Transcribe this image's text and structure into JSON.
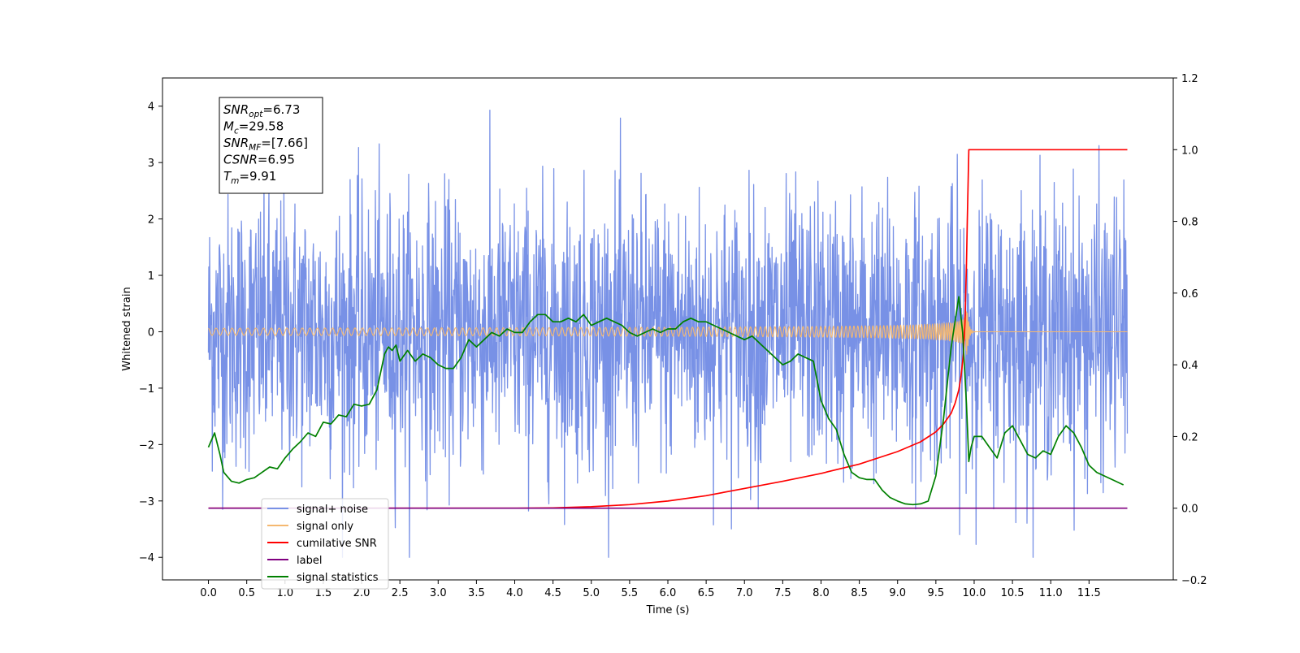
{
  "chart_data": {
    "type": "line",
    "xlabel": "Time (s)",
    "ylabel": "Whitened strain",
    "ylabel_right": "",
    "xlim": [
      -0.6,
      12.6
    ],
    "ylim": [
      -4.4,
      4.5
    ],
    "ylim_right": [
      -0.2,
      1.2
    ],
    "x_ticks": [
      "0.0",
      "0.5",
      "1.0",
      "1.5",
      "2.0",
      "2.5",
      "3.0",
      "3.5",
      "4.0",
      "4.5",
      "5.0",
      "5.5",
      "6.0",
      "6.5",
      "7.0",
      "7.5",
      "8.0",
      "8.5",
      "9.0",
      "9.5",
      "10.0",
      "10.5",
      "11.0",
      "11.5"
    ],
    "y_ticks": [
      "4",
      "3",
      "2",
      "1",
      "0",
      "−1",
      "−2",
      "−3",
      "−4"
    ],
    "y_ticks_right": [
      "1.2",
      "1.0",
      "0.8",
      "0.6",
      "0.4",
      "0.2",
      "0.0",
      "−0.2"
    ],
    "grid": false,
    "legend_position": "lower-left",
    "info_box": {
      "lines": [
        {
          "sym": "SNR",
          "sub": "opt",
          "val": "=6.73"
        },
        {
          "sym": "M",
          "sub": "c",
          "val": "=29.58"
        },
        {
          "sym": "SNR",
          "sub": "MF",
          "val": "=[7.66]"
        },
        {
          "sym": "CSNR",
          "sub": "",
          "val": "=6.95"
        },
        {
          "sym": "T",
          "sub": "m",
          "val": "=9.91"
        }
      ]
    },
    "series": [
      {
        "name": "signal+ noise",
        "color": "#7891e6",
        "axis": "left",
        "noise_band": {
          "x_start": 0.0,
          "x_end": 12.0,
          "typical_amplitude": 1.2,
          "peak_amplitude": 4.0
        }
      },
      {
        "name": "signal only",
        "color": "#f5b870",
        "axis": "left",
        "chirp": {
          "x_start": 0.0,
          "merger_time": 9.91,
          "x_end": 12.0,
          "peak_amplitude": 0.5
        }
      },
      {
        "name": "cumilative SNR",
        "color": "#ff0000",
        "axis": "right",
        "x": [
          0,
          4.0,
          4.5,
          5.0,
          5.5,
          6.0,
          6.5,
          7.0,
          7.5,
          8.0,
          8.5,
          9.0,
          9.3,
          9.5,
          9.6,
          9.7,
          9.75,
          9.8,
          9.83,
          9.86,
          9.88,
          9.9,
          9.91,
          9.93,
          12.0
        ],
        "values": [
          0,
          0,
          0.001,
          0.004,
          0.01,
          0.02,
          0.035,
          0.055,
          0.075,
          0.097,
          0.123,
          0.158,
          0.185,
          0.213,
          0.235,
          0.265,
          0.292,
          0.33,
          0.37,
          0.43,
          0.52,
          0.68,
          0.8,
          1.0,
          1.0
        ]
      },
      {
        "name": "label",
        "color": "#800080",
        "axis": "right",
        "x": [
          0,
          12.0
        ],
        "values": [
          0,
          0
        ]
      },
      {
        "name": "signal statistics",
        "color": "#008000",
        "axis": "right",
        "x": [
          0,
          0.08,
          0.15,
          0.2,
          0.3,
          0.4,
          0.5,
          0.6,
          0.7,
          0.8,
          0.9,
          1.0,
          1.1,
          1.2,
          1.3,
          1.4,
          1.5,
          1.6,
          1.7,
          1.8,
          1.9,
          2.0,
          2.1,
          2.2,
          2.3,
          2.35,
          2.4,
          2.45,
          2.5,
          2.6,
          2.7,
          2.8,
          2.9,
          3.0,
          3.1,
          3.2,
          3.3,
          3.4,
          3.5,
          3.6,
          3.7,
          3.8,
          3.9,
          4.0,
          4.1,
          4.2,
          4.3,
          4.4,
          4.5,
          4.6,
          4.7,
          4.8,
          4.9,
          5.0,
          5.1,
          5.2,
          5.3,
          5.4,
          5.5,
          5.6,
          5.7,
          5.8,
          5.9,
          6.0,
          6.1,
          6.2,
          6.3,
          6.4,
          6.5,
          6.6,
          6.7,
          6.8,
          6.9,
          7.0,
          7.1,
          7.2,
          7.3,
          7.4,
          7.5,
          7.6,
          7.7,
          7.8,
          7.9,
          8.0,
          8.1,
          8.2,
          8.3,
          8.4,
          8.5,
          8.6,
          8.7,
          8.8,
          8.9,
          9.0,
          9.1,
          9.2,
          9.3,
          9.4,
          9.5,
          9.6,
          9.7,
          9.8,
          9.85,
          9.9,
          9.93,
          9.96,
          10.0,
          10.1,
          10.2,
          10.3,
          10.4,
          10.5,
          10.6,
          10.7,
          10.8,
          10.9,
          11.0,
          11.1,
          11.2,
          11.3,
          11.4,
          11.5,
          11.6,
          11.7,
          11.8,
          11.95
        ],
        "values": [
          0.17,
          0.21,
          0.15,
          0.1,
          0.075,
          0.07,
          0.08,
          0.085,
          0.1,
          0.115,
          0.11,
          0.14,
          0.165,
          0.185,
          0.21,
          0.2,
          0.24,
          0.235,
          0.26,
          0.255,
          0.29,
          0.285,
          0.29,
          0.33,
          0.43,
          0.45,
          0.44,
          0.455,
          0.41,
          0.44,
          0.41,
          0.43,
          0.42,
          0.4,
          0.39,
          0.39,
          0.42,
          0.47,
          0.45,
          0.47,
          0.49,
          0.48,
          0.5,
          0.49,
          0.49,
          0.52,
          0.54,
          0.54,
          0.52,
          0.52,
          0.53,
          0.52,
          0.54,
          0.51,
          0.52,
          0.53,
          0.52,
          0.51,
          0.49,
          0.48,
          0.49,
          0.5,
          0.49,
          0.5,
          0.5,
          0.52,
          0.53,
          0.52,
          0.52,
          0.51,
          0.5,
          0.49,
          0.48,
          0.47,
          0.48,
          0.46,
          0.44,
          0.42,
          0.4,
          0.41,
          0.43,
          0.42,
          0.41,
          0.3,
          0.25,
          0.22,
          0.15,
          0.1,
          0.085,
          0.08,
          0.08,
          0.05,
          0.03,
          0.02,
          0.012,
          0.01,
          0.012,
          0.02,
          0.09,
          0.25,
          0.45,
          0.59,
          0.49,
          0.29,
          0.13,
          0.17,
          0.2,
          0.2,
          0.17,
          0.14,
          0.21,
          0.23,
          0.19,
          0.15,
          0.14,
          0.16,
          0.15,
          0.2,
          0.23,
          0.21,
          0.17,
          0.12,
          0.1,
          0.09,
          0.08,
          0.065
        ]
      }
    ]
  }
}
